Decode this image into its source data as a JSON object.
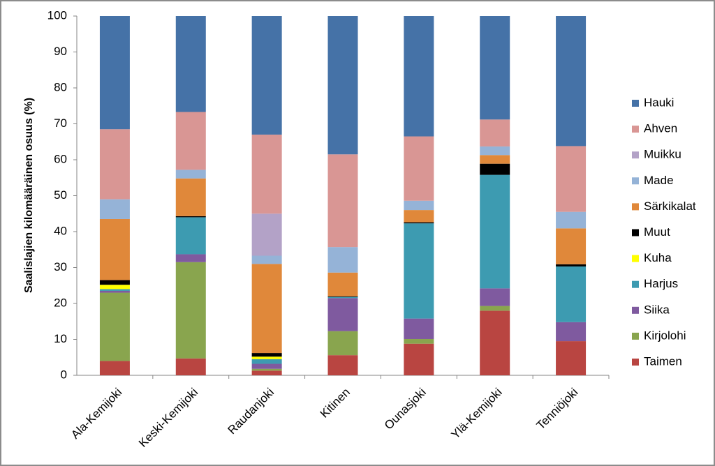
{
  "chart_data": {
    "type": "stacked-bar",
    "y_label": "Saalislajien kilomääräinen osuus (%)",
    "categories": [
      "Ala-Kemijoki",
      "Keski-Kemijoki",
      "Raudanjoki",
      "Kitinen",
      "Ounasjoki",
      "Ylä-Kemijoki",
      "Tenniöjoki"
    ],
    "series": [
      {
        "name": "Taimen",
        "color": "#b94541",
        "values": [
          4,
          4.7,
          1.3,
          5.6,
          8.8,
          18,
          9.5
        ]
      },
      {
        "name": "Kirjolohi",
        "color": "#89a54e",
        "values": [
          19,
          26.8,
          0.5,
          6.7,
          1.3,
          1.3,
          0
        ]
      },
      {
        "name": "Siika",
        "color": "#7f5a9f",
        "values": [
          0.5,
          2.2,
          1.4,
          9.2,
          5.7,
          4.9,
          5.3
        ]
      },
      {
        "name": "Harjus",
        "color": "#3d9bb1",
        "values": [
          0.5,
          10.3,
          1.3,
          0.3,
          26.5,
          31.6,
          15.5
        ]
      },
      {
        "name": "Kuha",
        "color": "#ffff00",
        "values": [
          1.2,
          0,
          0.7,
          0,
          0,
          0,
          0
        ]
      },
      {
        "name": "Muut",
        "color": "#000000",
        "values": [
          1.3,
          0.3,
          1.0,
          0.2,
          0.3,
          3.1,
          0.6
        ]
      },
      {
        "name": "Särkikalat",
        "color": "#e0883a",
        "values": [
          17,
          10.5,
          24.8,
          6.6,
          3.4,
          2.4,
          10
        ]
      },
      {
        "name": "Made",
        "color": "#95b3d7",
        "values": [
          5.5,
          2.4,
          2.3,
          7.1,
          2.6,
          2.4,
          4.6
        ]
      },
      {
        "name": "Muikku",
        "color": "#b3a2c7",
        "values": [
          0,
          0,
          11.7,
          0,
          0,
          0,
          0
        ]
      },
      {
        "name": "Ahven",
        "color": "#d99694",
        "values": [
          19.5,
          16.1,
          22,
          25.8,
          17.9,
          7.5,
          18.3
        ]
      },
      {
        "name": "Hauki",
        "color": "#4572a7",
        "values": [
          31.5,
          26.7,
          33,
          38.5,
          33.5,
          28.8,
          36.2
        ]
      }
    ],
    "ylim": [
      0,
      100
    ],
    "yticks": [
      0,
      10,
      20,
      30,
      40,
      50,
      60,
      70,
      80,
      90,
      100
    ],
    "grid": false,
    "legend": "right"
  }
}
